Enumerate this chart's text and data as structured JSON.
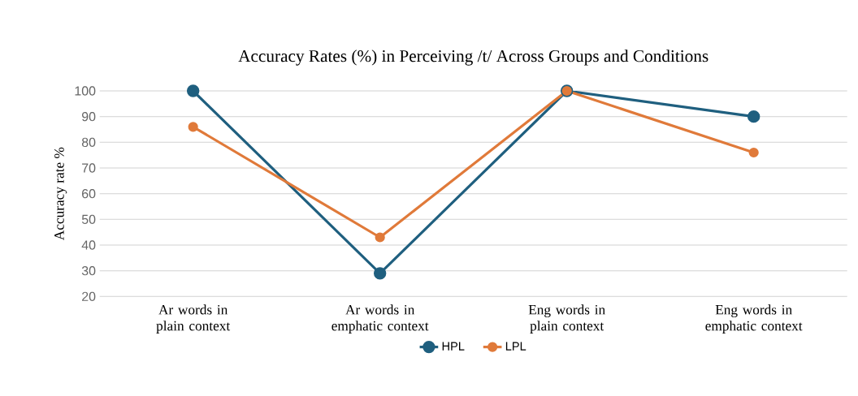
{
  "chart_data": {
    "type": "line",
    "title": "Accuracy Rates (%) in Perceiving /t/ Across Groups and Conditions",
    "ylabel": "Accuracy rate %",
    "categories": [
      "Ar words in plain context",
      "Ar words in emphatic context",
      "Eng words in plain context",
      "Eng words in emphatic context"
    ],
    "series": [
      {
        "name": "HPL",
        "color": "#1f5f7f",
        "values": [
          100,
          29,
          100,
          90
        ]
      },
      {
        "name": "LPL",
        "color": "#e07a3a",
        "values": [
          86,
          43,
          100,
          76
        ]
      }
    ],
    "ylim": [
      20,
      100
    ],
    "yticks": [
      20,
      30,
      40,
      50,
      60,
      70,
      80,
      90,
      100
    ],
    "grid": "y",
    "legend": "bottom",
    "marker": "circle",
    "line_style": "solid"
  }
}
